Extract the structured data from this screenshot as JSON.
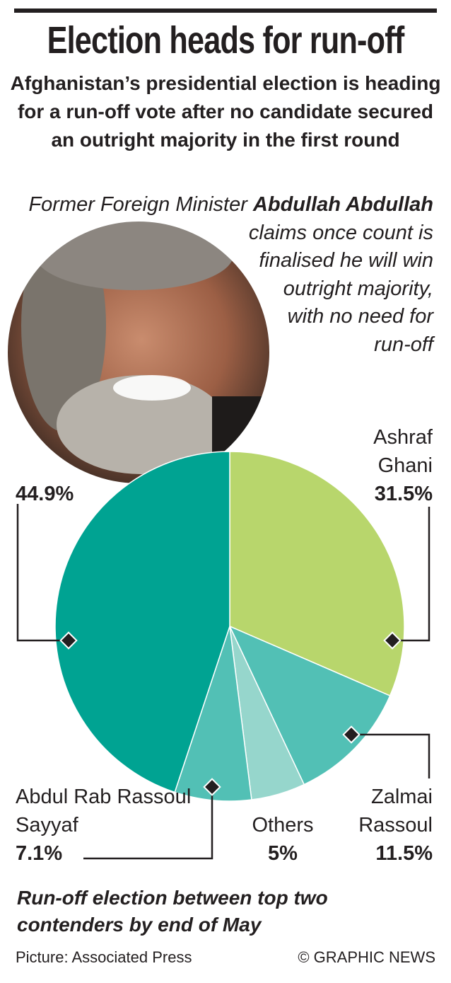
{
  "chart_data": {
    "type": "pie",
    "title": "Election heads for run-off",
    "subtitle": "Afghanistan’s presidential election is heading for a run-off vote after no candidate secured an outright majority in the first round",
    "annotation": [
      "Former Foreign Minister",
      "Abdullah Abdullah",
      "claims once count is finalised he will win outright majority, with no need for run-off"
    ],
    "categories": [
      "Ashraf Ghani",
      "Zalmai Rassoul",
      "Others",
      "Abdul Rab Rassoul Sayyaf",
      null
    ],
    "values": [
      31.5,
      11.5,
      5,
      7.1,
      44.9
    ],
    "value_labels": [
      "31.5%",
      "11.5%",
      "5%",
      "7.1%",
      "44.9%"
    ],
    "colors": [
      "#b8d66c",
      "#52c0b5",
      "#96d6cc",
      "#52c0b5",
      "#00a392"
    ],
    "footnote": "Run-off election between top two contenders by end of May",
    "source": "Picture: Associated Press",
    "credit": "© GRAPHIC NEWS"
  }
}
